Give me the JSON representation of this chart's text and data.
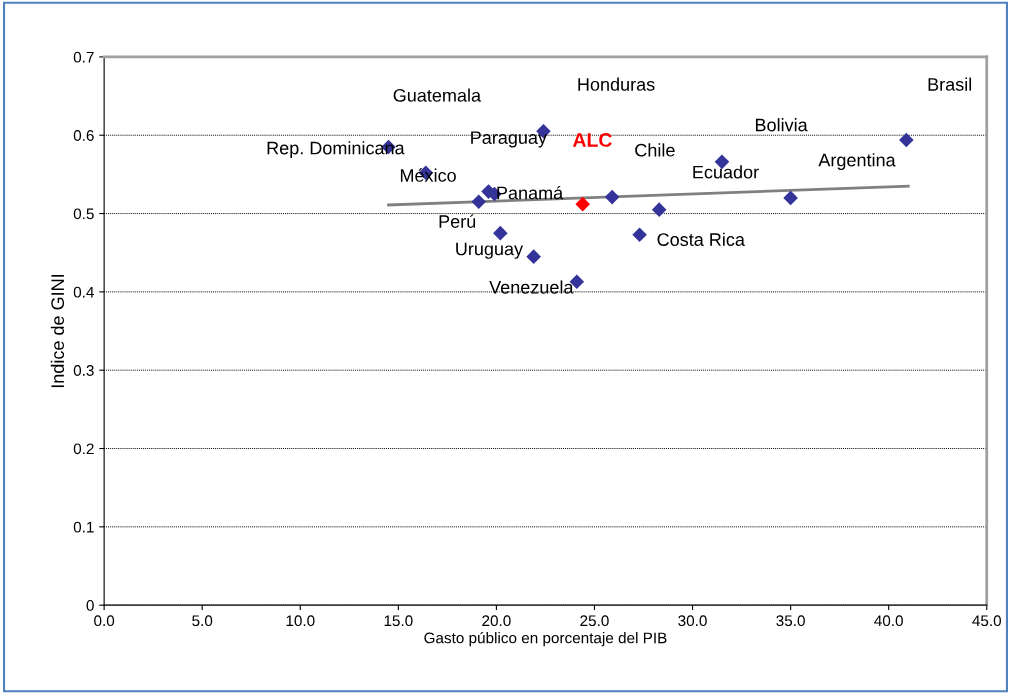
{
  "chart_data": {
    "type": "scatter",
    "xlabel": "Gasto público en porcentaje del PIB",
    "ylabel": "Indice de GINI",
    "xlim": [
      0,
      45
    ],
    "xticks": [
      {
        "value": 0,
        "label": "0.0"
      },
      {
        "value": 5,
        "label": "5.0"
      },
      {
        "value": 10,
        "label": "10.0"
      },
      {
        "value": 15,
        "label": "15.0"
      },
      {
        "value": 20,
        "label": "20.0"
      },
      {
        "value": 25,
        "label": "25.0"
      },
      {
        "value": 30,
        "label": "30.0"
      },
      {
        "value": 35,
        "label": "35.0"
      },
      {
        "value": 40,
        "label": "40.0"
      },
      {
        "value": 45,
        "label": "45.0"
      }
    ],
    "ylim": [
      0,
      0.7
    ],
    "yticks": [
      0,
      0.1,
      0.2,
      0.3,
      0.4,
      0.5,
      0.6,
      0.7
    ],
    "grid": "y",
    "legend": false,
    "marker": "diamond",
    "series": [
      {
        "color": "#333399",
        "x": [
          14.5,
          16.4,
          19.1,
          19.6,
          19.9,
          20.2,
          21.9,
          22.4,
          24.1,
          25.9,
          27.3,
          28.3,
          31.5,
          35.0,
          40.9
        ],
        "values": [
          0.585,
          0.552,
          0.515,
          0.528,
          0.525,
          0.475,
          0.445,
          0.605,
          0.413,
          0.521,
          0.473,
          0.505,
          0.566,
          0.52,
          0.594
        ]
      },
      {
        "name": "ALC",
        "color": "#ff0000",
        "x": [
          24.4
        ],
        "values": [
          0.512
        ]
      },
      {
        "type": "line",
        "marker": "none",
        "color": "#808080",
        "x": [
          14.5,
          41.0
        ],
        "values": [
          0.511,
          0.535
        ]
      }
    ],
    "annotations": [
      "Guatemala",
      "Honduras",
      "Brasil",
      "Rep. Dominicana",
      "Paraguay",
      "Chile",
      "Bolivia",
      "México",
      "Ecuador",
      "Argentina",
      "Panamá",
      "Perú",
      "Costa Rica",
      "Uruguay",
      "Venezuela"
    ]
  }
}
